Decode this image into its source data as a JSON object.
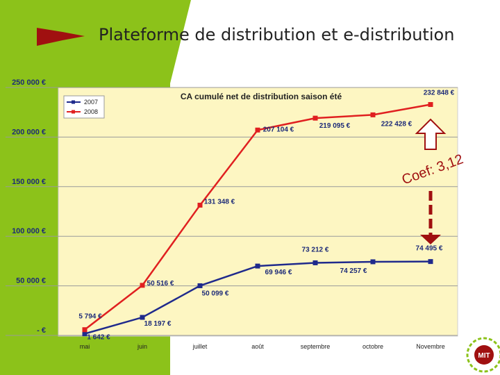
{
  "slide": {
    "title": "Plateforme de distribution et e-distribution",
    "accent_green": "#8cc21a",
    "arrow_color": "#a01010"
  },
  "chart_data": {
    "type": "line",
    "title": "CA cumulé net de distribution saison été",
    "categories": [
      "mai",
      "juin",
      "juillet",
      "août",
      "septembre",
      "octobre",
      "Novembre"
    ],
    "series": [
      {
        "name": "2007",
        "color": "#1f2a8c",
        "values": [
          1642,
          18197,
          50099,
          69946,
          73212,
          74257,
          74495
        ],
        "labels": [
          "1 642 €",
          "18 197 €",
          "50 099 €",
          "69 946 €",
          "73 212 €",
          "74 257 €",
          "74 495 €"
        ]
      },
      {
        "name": "2008",
        "color": "#e02020",
        "values": [
          5794,
          50516,
          131348,
          207104,
          219095,
          222428,
          232848
        ],
        "labels": [
          "5 794 €",
          "50 516 €",
          "131 348 €",
          "207 104 €",
          "219 095 €",
          "222 428 €",
          "232 848 €"
        ]
      }
    ],
    "ylim": [
      0,
      250000
    ],
    "yticks": [
      {
        "value": 250000,
        "label": "250 000 €"
      },
      {
        "value": 200000,
        "label": "200 000 €"
      },
      {
        "value": 150000,
        "label": "150 000 €"
      },
      {
        "value": 100000,
        "label": "100 000 €"
      },
      {
        "value": 50000,
        "label": "50 000 €"
      },
      {
        "value": 0,
        "label": "-    €"
      }
    ],
    "grid": true,
    "legend_position": "top-left",
    "annotation": {
      "text": "Coef: 3,12",
      "color": "#a01010"
    }
  },
  "logo": {
    "text": "MIT"
  }
}
